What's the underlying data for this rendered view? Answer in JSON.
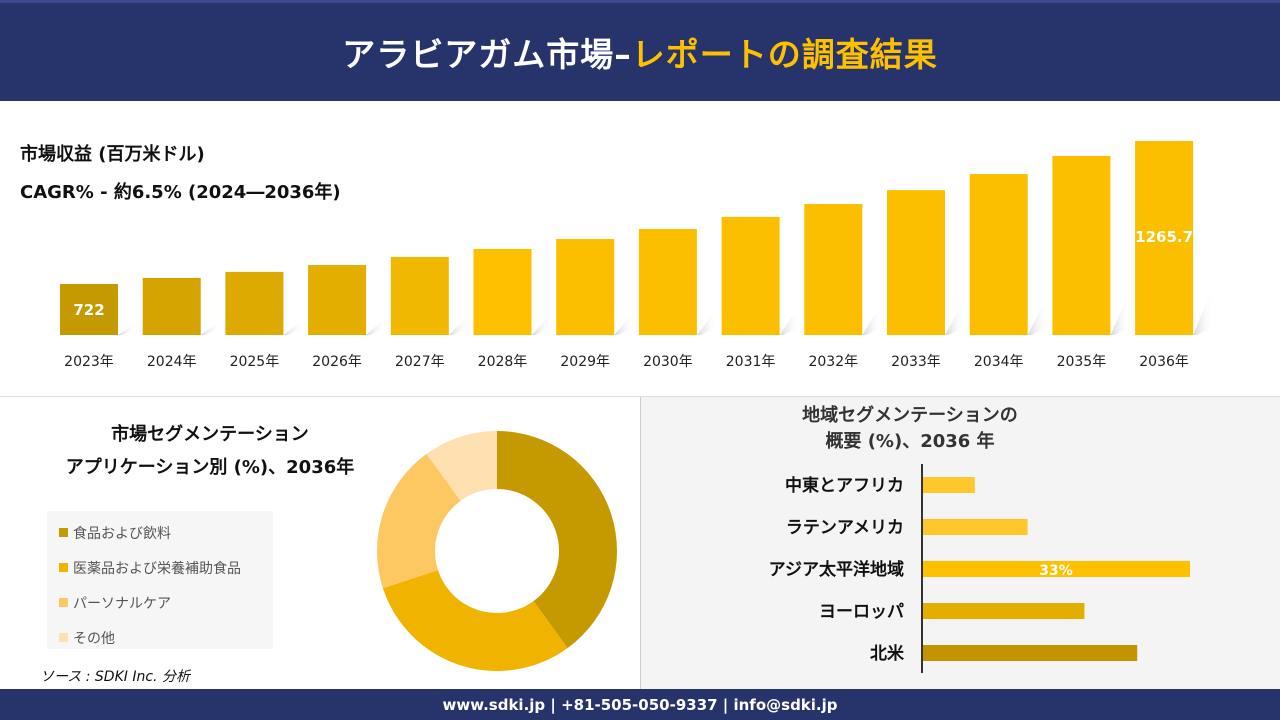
{
  "header": {
    "title_main": "アラビアガム市場–",
    "title_highlight": "レポートの調査結果"
  },
  "colors": {
    "navy": "#27336b",
    "accent": "#ffc000"
  },
  "chart_data": [
    {
      "type": "bar",
      "title": "市場収益 (百万米ドル)",
      "subtitle": "CAGR% - 約6.5% (2024―2036年)",
      "categories": [
        "2023年",
        "2024年",
        "2025年",
        "2026年",
        "2027年",
        "2028年",
        "2029年",
        "2030年",
        "2031年",
        "2032年",
        "2033年",
        "2034年",
        "2035年",
        "2036年"
      ],
      "values": [
        722,
        745,
        768,
        794,
        825,
        855,
        893,
        931,
        977,
        1026,
        1079,
        1140,
        1209,
        1265.7
      ],
      "data_labels": {
        "0": "722",
        "13": "1265.7"
      },
      "colors": [
        "#c49a00",
        "#d4a300",
        "#dcaa00",
        "#e3ae00",
        "#f0b800",
        "#ffc000",
        "#fcbf00",
        "#fcbf00",
        "#fcbf00",
        "#fcbf00",
        "#fcbf00",
        "#fcbf00",
        "#fcbf00",
        "#fcbf00"
      ]
    },
    {
      "type": "pie",
      "donut": true,
      "title": "市場セグメンテーション",
      "subtitle": "アプリケーション別 (%)、2036年",
      "labels": [
        "食品および飲料",
        "医薬品および栄養補助食品",
        "パーソナルケア",
        "その他"
      ],
      "values": [
        40,
        30,
        20,
        10
      ],
      "colors": [
        "#c49a00",
        "#f0b400",
        "#fdc862",
        "#ffe0b0"
      ],
      "legend": "left"
    },
    {
      "type": "bar",
      "orientation": "horizontal",
      "title": "地域セグメンテーションの",
      "subtitle": "概要 (%)、2036 年",
      "categories": [
        "中東とアフリカ",
        "ラテンアメリカ",
        "アジア太平洋地域",
        "ヨーロッパ",
        "北米"
      ],
      "values": [
        6.5,
        13,
        33,
        20,
        26.5
      ],
      "data_labels": {
        "2": "33%"
      },
      "colors": [
        "#ffc72c",
        "#ffc72c",
        "#ffc000",
        "#e3ae00",
        "#c49300"
      ]
    }
  ],
  "source": "ソース : SDKI Inc. 分析",
  "footer": "www.sdki.jp | +81-505-050-9337 | info@sdki.jp"
}
